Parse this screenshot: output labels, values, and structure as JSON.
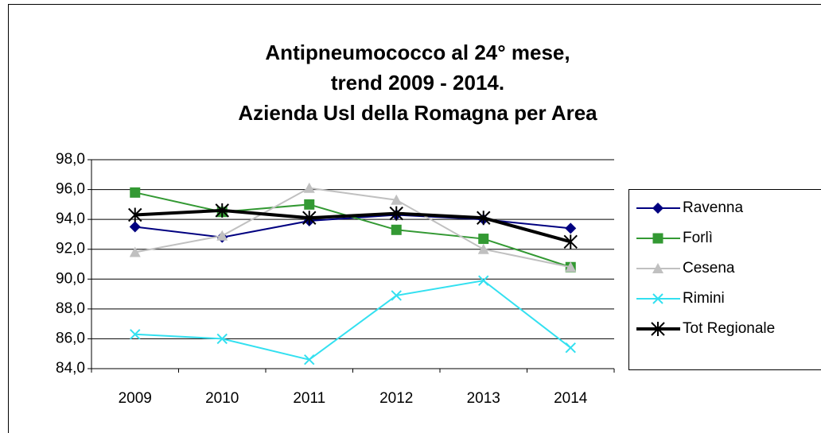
{
  "chart_data": {
    "type": "line",
    "title": [
      "Antipneumococco al 24° mese,",
      "trend 2009 - 2014.",
      "Azienda Usl della Romagna per Area"
    ],
    "categories": [
      "2009",
      "2010",
      "2011",
      "2012",
      "2013",
      "2014"
    ],
    "series": [
      {
        "name": "Ravenna",
        "color": "#000080",
        "marker": "diamond",
        "values": [
          93.5,
          92.8,
          93.9,
          94.3,
          94.0,
          93.4
        ]
      },
      {
        "name": "Forlì",
        "color": "#339933",
        "marker": "square",
        "values": [
          95.8,
          94.5,
          95.0,
          93.3,
          92.7,
          90.8
        ]
      },
      {
        "name": "Cesena",
        "color": "#c0c0c0",
        "marker": "triangle",
        "values": [
          91.8,
          92.9,
          96.1,
          95.3,
          92.0,
          90.8
        ]
      },
      {
        "name": "Rimini",
        "color": "#33e0f0",
        "marker": "x",
        "values": [
          86.3,
          86.0,
          84.6,
          88.9,
          89.9,
          85.4
        ]
      },
      {
        "name": "Tot Regionale",
        "color": "#000000",
        "marker": "star",
        "values": [
          94.3,
          94.6,
          94.1,
          94.4,
          94.1,
          92.5
        ]
      }
    ],
    "ylim": [
      84,
      98
    ],
    "yticks": [
      {
        "value": 84,
        "label": "84,0"
      },
      {
        "value": 86,
        "label": "86,0"
      },
      {
        "value": 88,
        "label": "88,0"
      },
      {
        "value": 90,
        "label": "90,0"
      },
      {
        "value": 92,
        "label": "92,0"
      },
      {
        "value": 94,
        "label": "94,0"
      },
      {
        "value": 96,
        "label": "96,0"
      },
      {
        "value": 98,
        "label": "98,0"
      }
    ],
    "grid": true,
    "legend": "right"
  }
}
